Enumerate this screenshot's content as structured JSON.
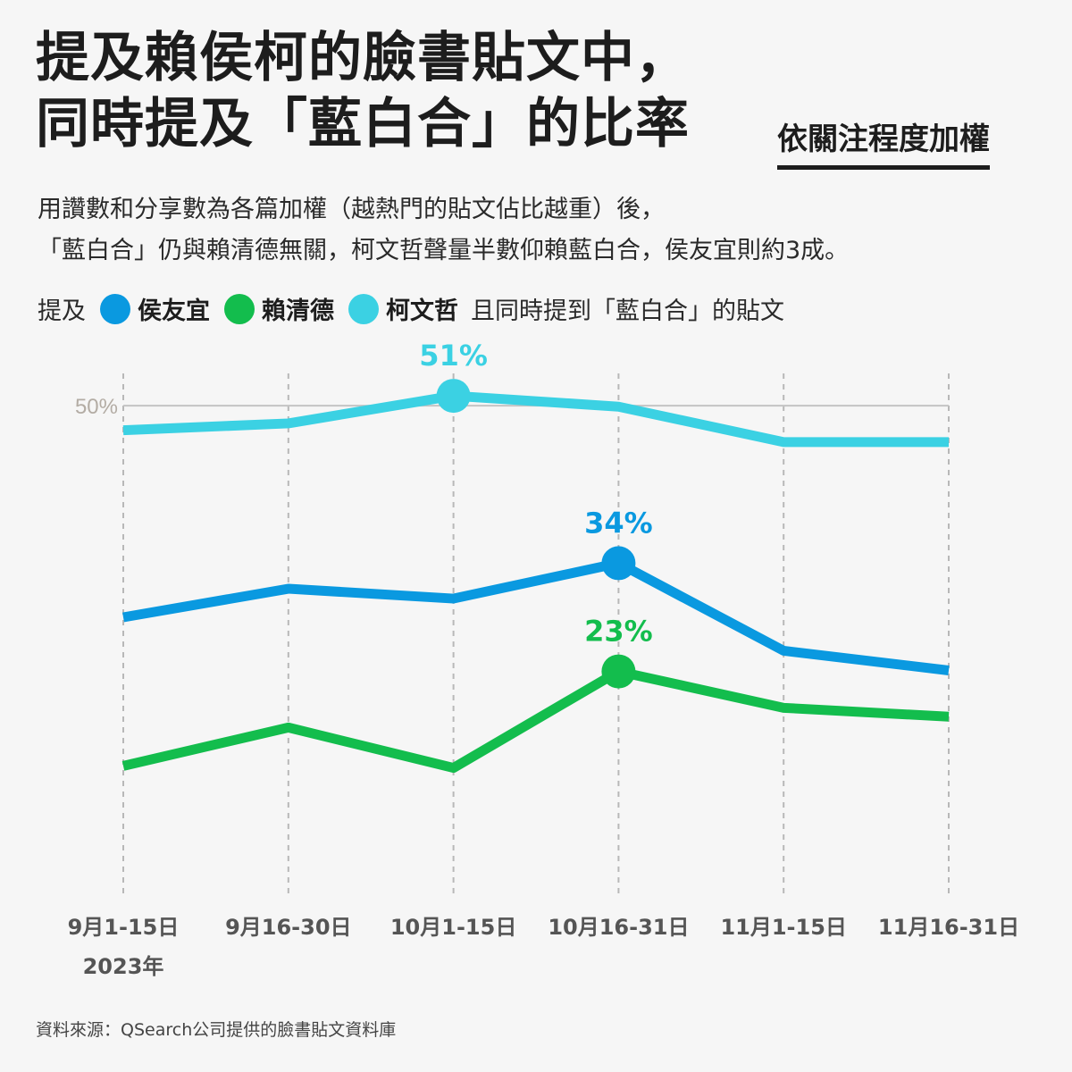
{
  "title": {
    "line1": "提及賴侯柯的臉書貼文中，",
    "line2": "同時提及「藍白合」的比率",
    "weight_note": "依關注程度加權"
  },
  "subtitle": {
    "line1": "用讚數和分享數為各篇加權（越熱門的貼文佔比越重）後，",
    "line2": "「藍白合」仍與賴清德無關，柯文哲聲量半數仰賴藍白合，侯友宜則約3成。"
  },
  "legend": {
    "prefix": "提及",
    "suffix": "且同時提到「藍白合」的貼文",
    "items": [
      {
        "name": "侯友宜",
        "color": "#0a99e0"
      },
      {
        "name": "賴清德",
        "color": "#13bd4d"
      },
      {
        "name": "柯文哲",
        "color": "#3bd1e3"
      }
    ]
  },
  "chart_data": {
    "type": "line",
    "categories": [
      "9月1-15日",
      "9月16-30日",
      "10月1-15日",
      "10月16-31日",
      "11月1-15日",
      "11月16-31日"
    ],
    "year_label": "2023年",
    "ylim": [
      0,
      56
    ],
    "reference_line": {
      "value": 50,
      "label": "50%"
    },
    "grid": "vertical dashed at each category",
    "series": [
      {
        "name": "柯文哲",
        "color": "#3bd1e3",
        "values": [
          47.5,
          48.2,
          51,
          49.9,
          46.3,
          46.3
        ],
        "highlight": {
          "index": 2,
          "label": "51%"
        }
      },
      {
        "name": "侯友宜",
        "color": "#0a99e0",
        "values": [
          28.5,
          31.4,
          30.4,
          34,
          25.1,
          23.1
        ],
        "highlight": {
          "index": 3,
          "label": "34%"
        }
      },
      {
        "name": "賴清德",
        "color": "#13bd4d",
        "values": [
          13.4,
          17.3,
          13.2,
          23,
          19.3,
          18.4
        ],
        "highlight": {
          "index": 3,
          "label": "23%"
        }
      }
    ]
  },
  "source": "資料來源：QSearch公司提供的臉書貼文資料庫"
}
